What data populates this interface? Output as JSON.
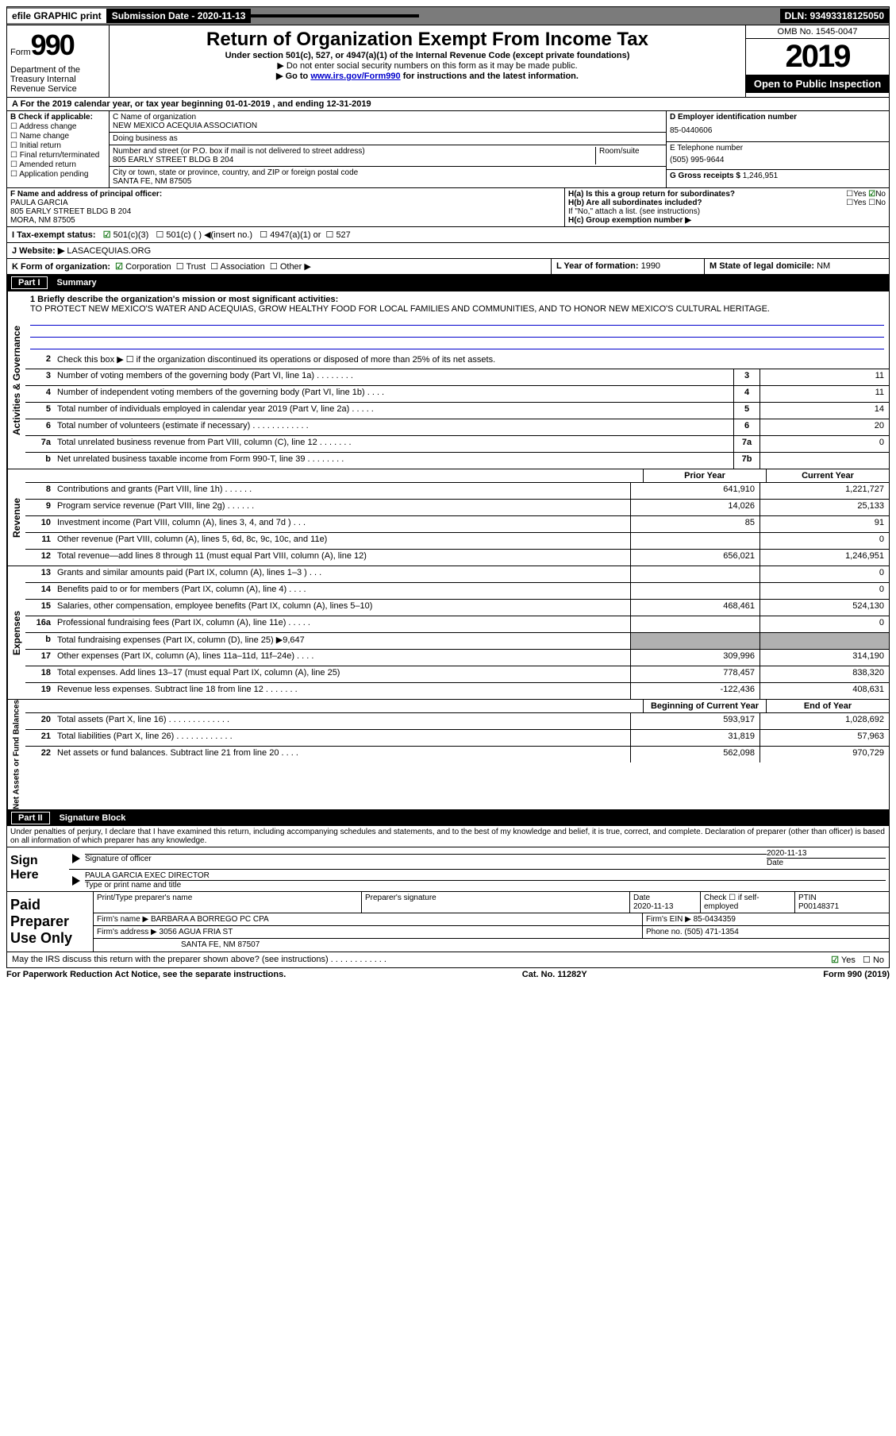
{
  "topbar": {
    "efile": "efile GRAPHIC print",
    "submission": "Submission Date - 2020-11-13",
    "dln": "DLN: 93493318125050"
  },
  "header": {
    "form_prefix": "Form",
    "form_number": "990",
    "dept": "Department of the Treasury Internal Revenue Service",
    "title": "Return of Organization Exempt From Income Tax",
    "sub": "Under section 501(c), 527, or 4947(a)(1) of the Internal Revenue Code (except private foundations)",
    "sub2": "▶ Do not enter social security numbers on this form as it may be made public.",
    "sub3_pre": "▶ Go to ",
    "sub3_link": "www.irs.gov/Form990",
    "sub3_post": " for instructions and the latest information.",
    "omb": "OMB No. 1545-0047",
    "year": "2019",
    "open": "Open to Public Inspection"
  },
  "period": "A For the 2019 calendar year, or tax year beginning 01-01-2019   , and ending 12-31-2019",
  "b": {
    "label": "B Check if applicable:",
    "opts": [
      "Address change",
      "Name change",
      "Initial return",
      "Final return/terminated",
      "Amended return",
      "Application pending"
    ]
  },
  "c": {
    "name_label": "C Name of organization",
    "name": "NEW MEXICO ACEQUIA ASSOCIATION",
    "dba_label": "Doing business as",
    "street_label": "Number and street (or P.O. box if mail is not delivered to street address)",
    "street": "805 EARLY STREET BLDG B 204",
    "room_label": "Room/suite",
    "city_label": "City or town, state or province, country, and ZIP or foreign postal code",
    "city": "SANTA FE, NM  87505"
  },
  "d": {
    "ein_label": "D Employer identification number",
    "ein": "85-0440606",
    "phone_label": "E Telephone number",
    "phone": "(505) 995-9644",
    "receipts_label": "G Gross receipts $",
    "receipts": "1,246,951"
  },
  "f": {
    "label": "F  Name and address of principal officer:",
    "name": "PAULA GARCIA",
    "street": "805 EARLY STREET BLDG B 204",
    "city": "MORA, NM  87505"
  },
  "h": {
    "a_label": "H(a)  Is this a group return for subordinates?",
    "a_no": "No",
    "b_label": "H(b)  Are all subordinates included?",
    "b_note": "If \"No,\" attach a list. (see instructions)",
    "c_label": "H(c)  Group exemption number ▶"
  },
  "i": {
    "label": "I  Tax-exempt status:",
    "c3": "501(c)(3)",
    "c": "501(c) (  ) ◀(insert no.)",
    "a1": "4947(a)(1) or",
    "s527": "527"
  },
  "j": {
    "label": "J  Website: ▶",
    "val": "LASACEQUIAS.ORG"
  },
  "k": {
    "label": "K Form of organization:",
    "opts": [
      "Corporation",
      "Trust",
      "Association",
      "Other ▶"
    ]
  },
  "l": {
    "label": "L Year of formation:",
    "val": "1990"
  },
  "m": {
    "label": "M State of legal domicile:",
    "val": "NM"
  },
  "part1": {
    "part": "Part I",
    "title": "Summary",
    "mission_label": "1  Briefly describe the organization's mission or most significant activities:",
    "mission": "TO PROTECT NEW MEXICO'S WATER AND ACEQUIAS, GROW HEALTHY FOOD FOR LOCAL FAMILIES AND COMMUNITIES, AND TO HONOR NEW MEXICO'S CULTURAL HERITAGE.",
    "line2": "Check this box ▶ ☐  if the organization discontinued its operations or disposed of more than 25% of its net assets.",
    "prior_year": "Prior Year",
    "current_year": "Current Year",
    "beg_year": "Beginning of Current Year",
    "end_year": "End of Year"
  },
  "ag_lines": [
    {
      "num": "3",
      "desc": "Number of voting members of the governing body (Part VI, line 1a)  .  .  .  .  .  .  .  .",
      "box": "3",
      "val": "11"
    },
    {
      "num": "4",
      "desc": "Number of independent voting members of the governing body (Part VI, line 1b)  .  .  .  .",
      "box": "4",
      "val": "11"
    },
    {
      "num": "5",
      "desc": "Total number of individuals employed in calendar year 2019 (Part V, line 2a)  .  .  .  .  .",
      "box": "5",
      "val": "14"
    },
    {
      "num": "6",
      "desc": "Total number of volunteers (estimate if necessary)   .  .  .  .  .  .  .  .  .  .  .  .",
      "box": "6",
      "val": "20"
    },
    {
      "num": "7a",
      "desc": "Total unrelated business revenue from Part VIII, column (C), line 12  .  .  .  .  .  .  .",
      "box": "7a",
      "val": "0"
    },
    {
      "num": "b",
      "desc": "Net unrelated business taxable income from Form 990-T, line 39   .  .  .  .  .  .  .  .",
      "box": "7b",
      "val": ""
    }
  ],
  "rev_lines": [
    {
      "num": "8",
      "desc": "Contributions and grants (Part VIII, line 1h)  .  .  .  .  .  .",
      "py": "641,910",
      "cy": "1,221,727"
    },
    {
      "num": "9",
      "desc": "Program service revenue (Part VIII, line 2g)  .  .  .  .  .  .",
      "py": "14,026",
      "cy": "25,133"
    },
    {
      "num": "10",
      "desc": "Investment income (Part VIII, column (A), lines 3, 4, and 7d )  .  .  .",
      "py": "85",
      "cy": "91"
    },
    {
      "num": "11",
      "desc": "Other revenue (Part VIII, column (A), lines 5, 6d, 8c, 9c, 10c, and 11e)",
      "py": "",
      "cy": "0"
    },
    {
      "num": "12",
      "desc": "Total revenue—add lines 8 through 11 (must equal Part VIII, column (A), line 12)",
      "py": "656,021",
      "cy": "1,246,951"
    }
  ],
  "exp_lines": [
    {
      "num": "13",
      "desc": "Grants and similar amounts paid (Part IX, column (A), lines 1–3 )  .  .  .",
      "py": "",
      "cy": "0"
    },
    {
      "num": "14",
      "desc": "Benefits paid to or for members (Part IX, column (A), line 4)  .  .  .  .",
      "py": "",
      "cy": "0"
    },
    {
      "num": "15",
      "desc": "Salaries, other compensation, employee benefits (Part IX, column (A), lines 5–10)",
      "py": "468,461",
      "cy": "524,130"
    },
    {
      "num": "16a",
      "desc": "Professional fundraising fees (Part IX, column (A), line 11e)  .  .  .  .  .",
      "py": "",
      "cy": "0"
    },
    {
      "num": "b",
      "desc": "Total fundraising expenses (Part IX, column (D), line 25) ▶9,647",
      "py": "grey",
      "cy": "grey"
    },
    {
      "num": "17",
      "desc": "Other expenses (Part IX, column (A), lines 11a–11d, 11f–24e)  .  .  .  .",
      "py": "309,996",
      "cy": "314,190"
    },
    {
      "num": "18",
      "desc": "Total expenses. Add lines 13–17 (must equal Part IX, column (A), line 25)",
      "py": "778,457",
      "cy": "838,320"
    },
    {
      "num": "19",
      "desc": "Revenue less expenses. Subtract line 18 from line 12 .  .  .  .  .  .  .",
      "py": "-122,436",
      "cy": "408,631"
    }
  ],
  "na_lines": [
    {
      "num": "20",
      "desc": "Total assets (Part X, line 16)  .  .  .  .  .  .  .  .  .  .  .  .  .",
      "py": "593,917",
      "cy": "1,028,692"
    },
    {
      "num": "21",
      "desc": "Total liabilities (Part X, line 26)  .  .  .  .  .  .  .  .  .  .  .  .",
      "py": "31,819",
      "cy": "57,963"
    },
    {
      "num": "22",
      "desc": "Net assets or fund balances. Subtract line 21 from line 20  .  .  .  .",
      "py": "562,098",
      "cy": "970,729"
    }
  ],
  "part2": {
    "part": "Part II",
    "title": "Signature Block",
    "text": "Under penalties of perjury, I declare that I have examined this return, including accompanying schedules and statements, and to the best of my knowledge and belief, it is true, correct, and complete. Declaration of preparer (other than officer) is based on all information of which preparer has any knowledge.",
    "sign_here": "Sign Here",
    "sig_officer": "Signature of officer",
    "date": "2020-11-13",
    "date_label": "Date",
    "officer": "PAULA GARCIA  EXEC DIRECTOR",
    "type_label": "Type or print name and title"
  },
  "prep": {
    "label": "Paid Preparer Use Only",
    "print_label": "Print/Type preparer's name",
    "sig_label": "Preparer's signature",
    "date_label": "Date",
    "date": "2020-11-13",
    "check_label": "Check ☐ if self-employed",
    "ptin_label": "PTIN",
    "ptin": "P00148371",
    "firm_label": "Firm's name      ▶",
    "firm": "BARBARA A BORREGO PC CPA",
    "firm_ein_label": "Firm's EIN ▶",
    "firm_ein": "85-0434359",
    "addr_label": "Firm's address ▶",
    "addr": "3056 AGUA FRIA ST",
    "addr2": "SANTA FE, NM  87507",
    "phone_label": "Phone no.",
    "phone": "(505) 471-1354",
    "discuss": "May the IRS discuss this return with the preparer shown above? (see instructions)  .  .  .  .  .  .  .  .  .  .  .  .",
    "yes": "Yes",
    "no": "No"
  },
  "footer": {
    "left": "For Paperwork Reduction Act Notice, see the separate instructions.",
    "mid": "Cat. No. 11282Y",
    "right": "Form 990 (2019)"
  },
  "side_labels": {
    "ag": "Activities & Governance",
    "rev": "Revenue",
    "exp": "Expenses",
    "na": "Net Assets or Fund Balances"
  }
}
